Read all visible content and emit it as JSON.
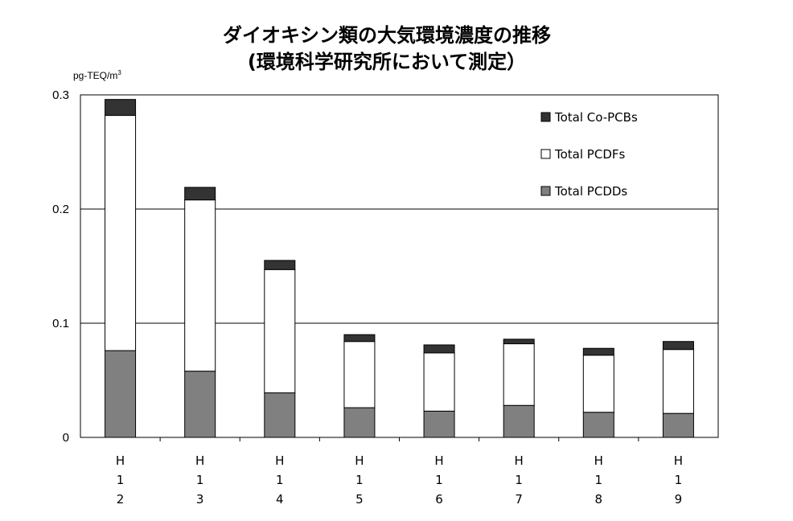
{
  "title_line1": "ダイオキシン類の大気環境濃度の推移",
  "title_line2": "(環境科学研究所において測定）",
  "chart_data": {
    "type": "bar",
    "stacked": true,
    "unit_label": "pg-TEQ/m",
    "unit_superscript": "3",
    "ylim": [
      0,
      0.3
    ],
    "yticks": [
      "0",
      "0.1",
      "0.2",
      "0.3"
    ],
    "ytick_values": [
      0,
      0.1,
      0.2,
      0.3
    ],
    "grid": true,
    "legend_position": "top-right",
    "categories": [
      [
        "H",
        "1",
        "2"
      ],
      [
        "H",
        "1",
        "3"
      ],
      [
        "H",
        "1",
        "4"
      ],
      [
        "H",
        "1",
        "5"
      ],
      [
        "H",
        "1",
        "6"
      ],
      [
        "H",
        "1",
        "7"
      ],
      [
        "H",
        "1",
        "8"
      ],
      [
        "H",
        "1",
        "9"
      ]
    ],
    "series": [
      {
        "name": "Total PCDDs",
        "color": "#808080",
        "values": [
          0.076,
          0.058,
          0.039,
          0.026,
          0.023,
          0.028,
          0.022,
          0.021
        ]
      },
      {
        "name": "Total PCDFs",
        "color": "#ffffff",
        "values": [
          0.206,
          0.15,
          0.108,
          0.058,
          0.051,
          0.054,
          0.05,
          0.056
        ]
      },
      {
        "name": "Total Co-PCBs",
        "color": "#333333",
        "values": [
          0.014,
          0.011,
          0.008,
          0.006,
          0.007,
          0.004,
          0.006,
          0.007
        ]
      }
    ],
    "legend_order": [
      "Total Co-PCBs",
      "Total PCDFs",
      "Total PCDDs"
    ]
  }
}
